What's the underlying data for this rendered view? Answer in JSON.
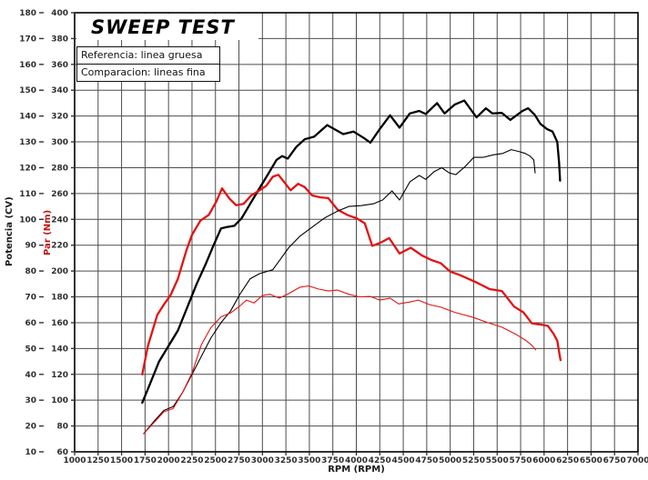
{
  "title": "SWEEP TEST",
  "legend": {
    "reference": "Referencia: linea gruesa",
    "comparison": "Comparacion: lineas fina"
  },
  "axes": {
    "x": {
      "label": "RPM (RPM)",
      "min": 1000,
      "max": 7000,
      "step": 250
    },
    "power": {
      "label": "Potencia (CV)",
      "min": 10,
      "max": 180,
      "step": 10
    },
    "torque": {
      "label": "Par (Nm)",
      "min": 60,
      "max": 400,
      "step": 20
    }
  },
  "colors": {
    "curve_black": "#000000",
    "curve_red": "#e31212",
    "torque_axis_title": "#c11414",
    "grid": "#4d4d4d",
    "frame": "#000000",
    "tick_text": "#2e2e2e"
  },
  "chart_data": {
    "type": "line",
    "title": "SWEEP TEST",
    "xlabel": "RPM (RPM)",
    "ylabel_left_outer": "Potencia (CV)",
    "ylabel_left_inner": "Par (Nm)",
    "x_range": [
      1000,
      7000
    ],
    "x_tick_step": 250,
    "power_axis_range": [
      10,
      180
    ],
    "power_tick_step": 10,
    "torque_axis_range": [
      60,
      400
    ],
    "torque_tick_step": 20,
    "grid": true,
    "legend_position": "top-left",
    "series": [
      {
        "name": "power_reference",
        "label": "Referencia potencia (linea gruesa)",
        "axis": "power",
        "units": "CV",
        "style": "thick",
        "color": "#000000",
        "points": [
          [
            1720,
            29
          ],
          [
            1800,
            36
          ],
          [
            1900,
            45
          ],
          [
            2000,
            51
          ],
          [
            2100,
            57
          ],
          [
            2200,
            66
          ],
          [
            2300,
            75
          ],
          [
            2400,
            83
          ],
          [
            2480,
            90
          ],
          [
            2560,
            96.5
          ],
          [
            2620,
            97
          ],
          [
            2700,
            97.5
          ],
          [
            2780,
            100.5
          ],
          [
            2870,
            106
          ],
          [
            2960,
            111.5
          ],
          [
            3060,
            117.5
          ],
          [
            3150,
            123
          ],
          [
            3210,
            124.5
          ],
          [
            3270,
            123.5
          ],
          [
            3360,
            128
          ],
          [
            3450,
            131
          ],
          [
            3550,
            132
          ],
          [
            3690,
            136.5
          ],
          [
            3860,
            133
          ],
          [
            3970,
            134
          ],
          [
            4080,
            131.5
          ],
          [
            4150,
            129.7
          ],
          [
            4250,
            135
          ],
          [
            4360,
            140.3
          ],
          [
            4460,
            135.5
          ],
          [
            4570,
            141
          ],
          [
            4670,
            142
          ],
          [
            4740,
            140.8
          ],
          [
            4860,
            145
          ],
          [
            4940,
            141
          ],
          [
            5050,
            144.5
          ],
          [
            5150,
            146
          ],
          [
            5280,
            139.5
          ],
          [
            5380,
            143
          ],
          [
            5450,
            141
          ],
          [
            5550,
            141.2
          ],
          [
            5640,
            138.5
          ],
          [
            5770,
            142
          ],
          [
            5830,
            143
          ],
          [
            5900,
            140.5
          ],
          [
            5960,
            137
          ],
          [
            6030,
            135
          ],
          [
            6090,
            134
          ],
          [
            6140,
            130
          ],
          [
            6160,
            122
          ],
          [
            6170,
            115
          ]
        ]
      },
      {
        "name": "torque_reference",
        "label": "Referencia par (linea gruesa)",
        "axis": "torque",
        "units": "Nm",
        "style": "thick",
        "color": "#e31212",
        "points": [
          [
            1720,
            120
          ],
          [
            1780,
            142
          ],
          [
            1880,
            166
          ],
          [
            1950,
            174
          ],
          [
            2020,
            181
          ],
          [
            2100,
            194
          ],
          [
            2190,
            216
          ],
          [
            2250,
            228
          ],
          [
            2340,
            239
          ],
          [
            2430,
            243.5
          ],
          [
            2510,
            254
          ],
          [
            2570,
            264
          ],
          [
            2650,
            256
          ],
          [
            2720,
            251
          ],
          [
            2800,
            252
          ],
          [
            2880,
            258.5
          ],
          [
            2960,
            262
          ],
          [
            3040,
            266
          ],
          [
            3110,
            273
          ],
          [
            3170,
            274.5
          ],
          [
            3220,
            270
          ],
          [
            3300,
            262.5
          ],
          [
            3380,
            267.5
          ],
          [
            3450,
            265
          ],
          [
            3530,
            258.5
          ],
          [
            3620,
            257
          ],
          [
            3700,
            256.5
          ],
          [
            3800,
            247.5
          ],
          [
            3900,
            243.5
          ],
          [
            4000,
            241
          ],
          [
            4090,
            237
          ],
          [
            4170,
            219.5
          ],
          [
            4260,
            222
          ],
          [
            4350,
            225.5
          ],
          [
            4460,
            213.5
          ],
          [
            4580,
            218
          ],
          [
            4700,
            212
          ],
          [
            4800,
            208.5
          ],
          [
            4900,
            206
          ],
          [
            5000,
            199.5
          ],
          [
            5100,
            197
          ],
          [
            5270,
            191.5
          ],
          [
            5420,
            186
          ],
          [
            5550,
            184.5
          ],
          [
            5680,
            172.5
          ],
          [
            5780,
            168
          ],
          [
            5870,
            159.5
          ],
          [
            5970,
            158.5
          ],
          [
            6040,
            157.5
          ],
          [
            6100,
            151.5
          ],
          [
            6140,
            146
          ],
          [
            6165,
            135
          ],
          [
            6175,
            131
          ]
        ]
      },
      {
        "name": "power_comparison",
        "label": "Comparacion potencia (linea fina)",
        "axis": "power",
        "units": "CV",
        "style": "thin",
        "color": "#000000",
        "points": [
          [
            1735,
            17
          ],
          [
            1850,
            22
          ],
          [
            1950,
            26
          ],
          [
            2050,
            27.5
          ],
          [
            2150,
            33
          ],
          [
            2250,
            40
          ],
          [
            2350,
            47
          ],
          [
            2450,
            54
          ],
          [
            2560,
            60
          ],
          [
            2660,
            64.5
          ],
          [
            2760,
            71
          ],
          [
            2870,
            77
          ],
          [
            2970,
            79
          ],
          [
            3110,
            80.5
          ],
          [
            3200,
            85
          ],
          [
            3280,
            89
          ],
          [
            3400,
            93.5
          ],
          [
            3530,
            97
          ],
          [
            3660,
            100.5
          ],
          [
            3790,
            103
          ],
          [
            3920,
            105
          ],
          [
            4050,
            105.3
          ],
          [
            4180,
            106
          ],
          [
            4280,
            107.5
          ],
          [
            4380,
            111
          ],
          [
            4460,
            107.5
          ],
          [
            4570,
            114.5
          ],
          [
            4670,
            117
          ],
          [
            4740,
            115.5
          ],
          [
            4830,
            118.5
          ],
          [
            4910,
            120
          ],
          [
            4990,
            118
          ],
          [
            5060,
            117.3
          ],
          [
            5160,
            120.5
          ],
          [
            5250,
            124
          ],
          [
            5350,
            124
          ],
          [
            5460,
            125
          ],
          [
            5560,
            125.5
          ],
          [
            5650,
            127
          ],
          [
            5730,
            126.3
          ],
          [
            5800,
            125.5
          ],
          [
            5850,
            124.5
          ],
          [
            5890,
            123
          ],
          [
            5905,
            118
          ]
        ]
      },
      {
        "name": "torque_comparison",
        "label": "Comparacion par (linea fina)",
        "axis": "torque",
        "units": "Nm",
        "style": "thin",
        "color": "#e31212",
        "points": [
          [
            1735,
            74
          ],
          [
            1850,
            83
          ],
          [
            1950,
            91
          ],
          [
            2050,
            93.5
          ],
          [
            2150,
            106
          ],
          [
            2250,
            121
          ],
          [
            2350,
            143
          ],
          [
            2450,
            156
          ],
          [
            2560,
            164.5
          ],
          [
            2660,
            167.5
          ],
          [
            2760,
            173
          ],
          [
            2830,
            177.5
          ],
          [
            2910,
            175.2
          ],
          [
            3000,
            181
          ],
          [
            3080,
            182
          ],
          [
            3180,
            179
          ],
          [
            3280,
            182.5
          ],
          [
            3400,
            187.5
          ],
          [
            3490,
            188.5
          ],
          [
            3600,
            186
          ],
          [
            3700,
            184.5
          ],
          [
            3800,
            185.2
          ],
          [
            3920,
            182
          ],
          [
            4030,
            180
          ],
          [
            4150,
            180.3
          ],
          [
            4250,
            177.5
          ],
          [
            4360,
            179
          ],
          [
            4450,
            174.5
          ],
          [
            4570,
            176
          ],
          [
            4660,
            177.5
          ],
          [
            4780,
            174
          ],
          [
            4900,
            172
          ],
          [
            5050,
            168
          ],
          [
            5250,
            164
          ],
          [
            5400,
            160
          ],
          [
            5550,
            156.5
          ],
          [
            5700,
            151
          ],
          [
            5800,
            146.5
          ],
          [
            5870,
            142.5
          ],
          [
            5910,
            139
          ]
        ]
      }
    ]
  }
}
